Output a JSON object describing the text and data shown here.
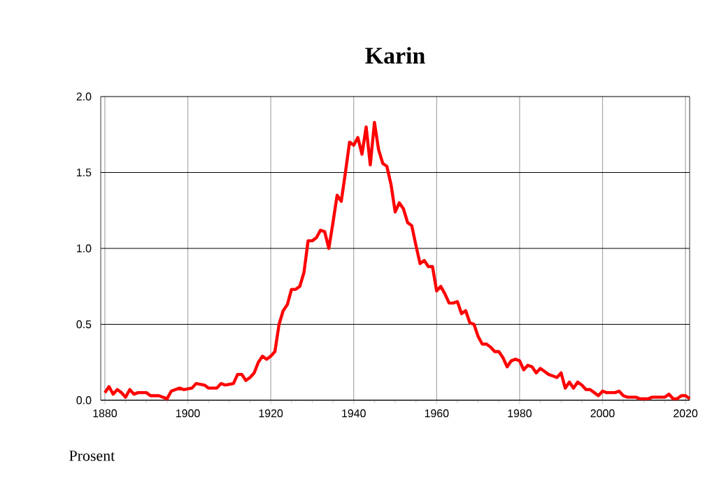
{
  "chart_data": {
    "type": "line",
    "title": "Karin",
    "ylabel": "Prosent",
    "x": [
      1880,
      1881,
      1882,
      1883,
      1884,
      1885,
      1886,
      1887,
      1888,
      1890,
      1891,
      1893,
      1895,
      1896,
      1898,
      1899,
      1901,
      1902,
      1904,
      1905,
      1907,
      1908,
      1909,
      1911,
      1912,
      1913,
      1914,
      1915,
      1916,
      1917,
      1918,
      1919,
      1920,
      1921,
      1922,
      1923,
      1924,
      1925,
      1926,
      1927,
      1928,
      1929,
      1930,
      1931,
      1932,
      1933,
      1934,
      1935,
      1936,
      1937,
      1938,
      1939,
      1940,
      1941,
      1942,
      1943,
      1944,
      1945,
      1946,
      1947,
      1948,
      1949,
      1950,
      1951,
      1952,
      1953,
      1954,
      1955,
      1956,
      1957,
      1958,
      1959,
      1960,
      1961,
      1962,
      1963,
      1964,
      1965,
      1966,
      1967,
      1968,
      1969,
      1970,
      1971,
      1972,
      1973,
      1974,
      1975,
      1976,
      1977,
      1978,
      1979,
      1980,
      1981,
      1982,
      1983,
      1984,
      1985,
      1986,
      1987,
      1988,
      1989,
      1990,
      1991,
      1992,
      1993,
      1994,
      1995,
      1996,
      1997,
      1998,
      1999,
      2000,
      2001,
      2003,
      2004,
      2005,
      2006,
      2008,
      2009,
      2011,
      2012,
      2015,
      2016,
      2017,
      2018,
      2019,
      2020,
      2021
    ],
    "series": [
      {
        "color": "#ff0000",
        "values": [
          0.05,
          0.09,
          0.04,
          0.07,
          0.05,
          0.02,
          0.07,
          0.04,
          0.05,
          0.05,
          0.03,
          0.03,
          0.01,
          0.06,
          0.08,
          0.07,
          0.08,
          0.11,
          0.1,
          0.08,
          0.08,
          0.11,
          0.1,
          0.11,
          0.17,
          0.17,
          0.13,
          0.15,
          0.18,
          0.25,
          0.29,
          0.27,
          0.29,
          0.32,
          0.5,
          0.59,
          0.63,
          0.73,
          0.73,
          0.75,
          0.84,
          1.05,
          1.05,
          1.07,
          1.12,
          1.11,
          1.0,
          1.17,
          1.35,
          1.31,
          1.5,
          1.7,
          1.68,
          1.73,
          1.62,
          1.8,
          1.55,
          1.83,
          1.65,
          1.56,
          1.54,
          1.42,
          1.24,
          1.3,
          1.26,
          1.17,
          1.15,
          1.02,
          0.9,
          0.92,
          0.88,
          0.88,
          0.72,
          0.75,
          0.7,
          0.64,
          0.64,
          0.65,
          0.57,
          0.59,
          0.51,
          0.5,
          0.42,
          0.37,
          0.37,
          0.35,
          0.32,
          0.32,
          0.28,
          0.22,
          0.26,
          0.27,
          0.26,
          0.2,
          0.23,
          0.22,
          0.18,
          0.21,
          0.19,
          0.17,
          0.16,
          0.15,
          0.18,
          0.08,
          0.12,
          0.08,
          0.12,
          0.1,
          0.07,
          0.07,
          0.05,
          0.03,
          0.06,
          0.05,
          0.05,
          0.06,
          0.03,
          0.02,
          0.02,
          0.01,
          0.01,
          0.02,
          0.02,
          0.04,
          0.01,
          0.01,
          0.03,
          0.03,
          0.01
        ]
      }
    ],
    "xlim": [
      1879,
      2021
    ],
    "ylim": [
      0,
      2.0
    ],
    "xticks": [
      1880,
      1900,
      1920,
      1940,
      1960,
      1980,
      2000,
      2020
    ],
    "yticks": [
      {
        "value": 0,
        "label": "0.0"
      },
      {
        "value": 0.5,
        "label": "0.5"
      },
      {
        "value": 1.0,
        "label": "1.0"
      },
      {
        "value": 1.5,
        "label": "1.5"
      },
      {
        "value": 2.0,
        "label": "2.0"
      }
    ],
    "grid": true,
    "marker": "none",
    "line_style": "solid"
  }
}
